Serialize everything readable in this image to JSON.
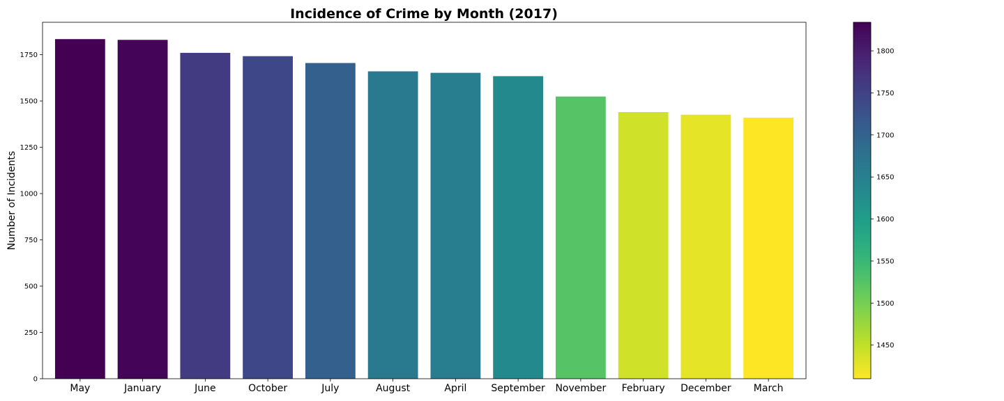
{
  "chart_data": {
    "type": "bar",
    "title": "Incidence of Crime by Month (2017)",
    "xlabel": "",
    "ylabel": "Number of Incidents",
    "categories": [
      "May",
      "January",
      "June",
      "October",
      "July",
      "August",
      "April",
      "September",
      "November",
      "February",
      "December",
      "March"
    ],
    "values": [
      1834,
      1830,
      1760,
      1742,
      1705,
      1660,
      1652,
      1634,
      1524,
      1440,
      1426,
      1410
    ],
    "ylim": [
      0,
      1925
    ],
    "yticks": [
      0,
      250,
      500,
      750,
      1000,
      1250,
      1500,
      1750
    ],
    "grid": false,
    "colormap": "viridis_r",
    "colorbar": {
      "range": [
        1410,
        1834
      ],
      "ticks": [
        1450,
        1500,
        1550,
        1600,
        1650,
        1700,
        1750,
        1800
      ]
    },
    "colors": {
      "viridis_stops": [
        "#fde725",
        "#b5de2b",
        "#6ece58",
        "#35b779",
        "#1f9e89",
        "#26828e",
        "#31688e",
        "#3e4989",
        "#482878",
        "#440154"
      ]
    }
  }
}
